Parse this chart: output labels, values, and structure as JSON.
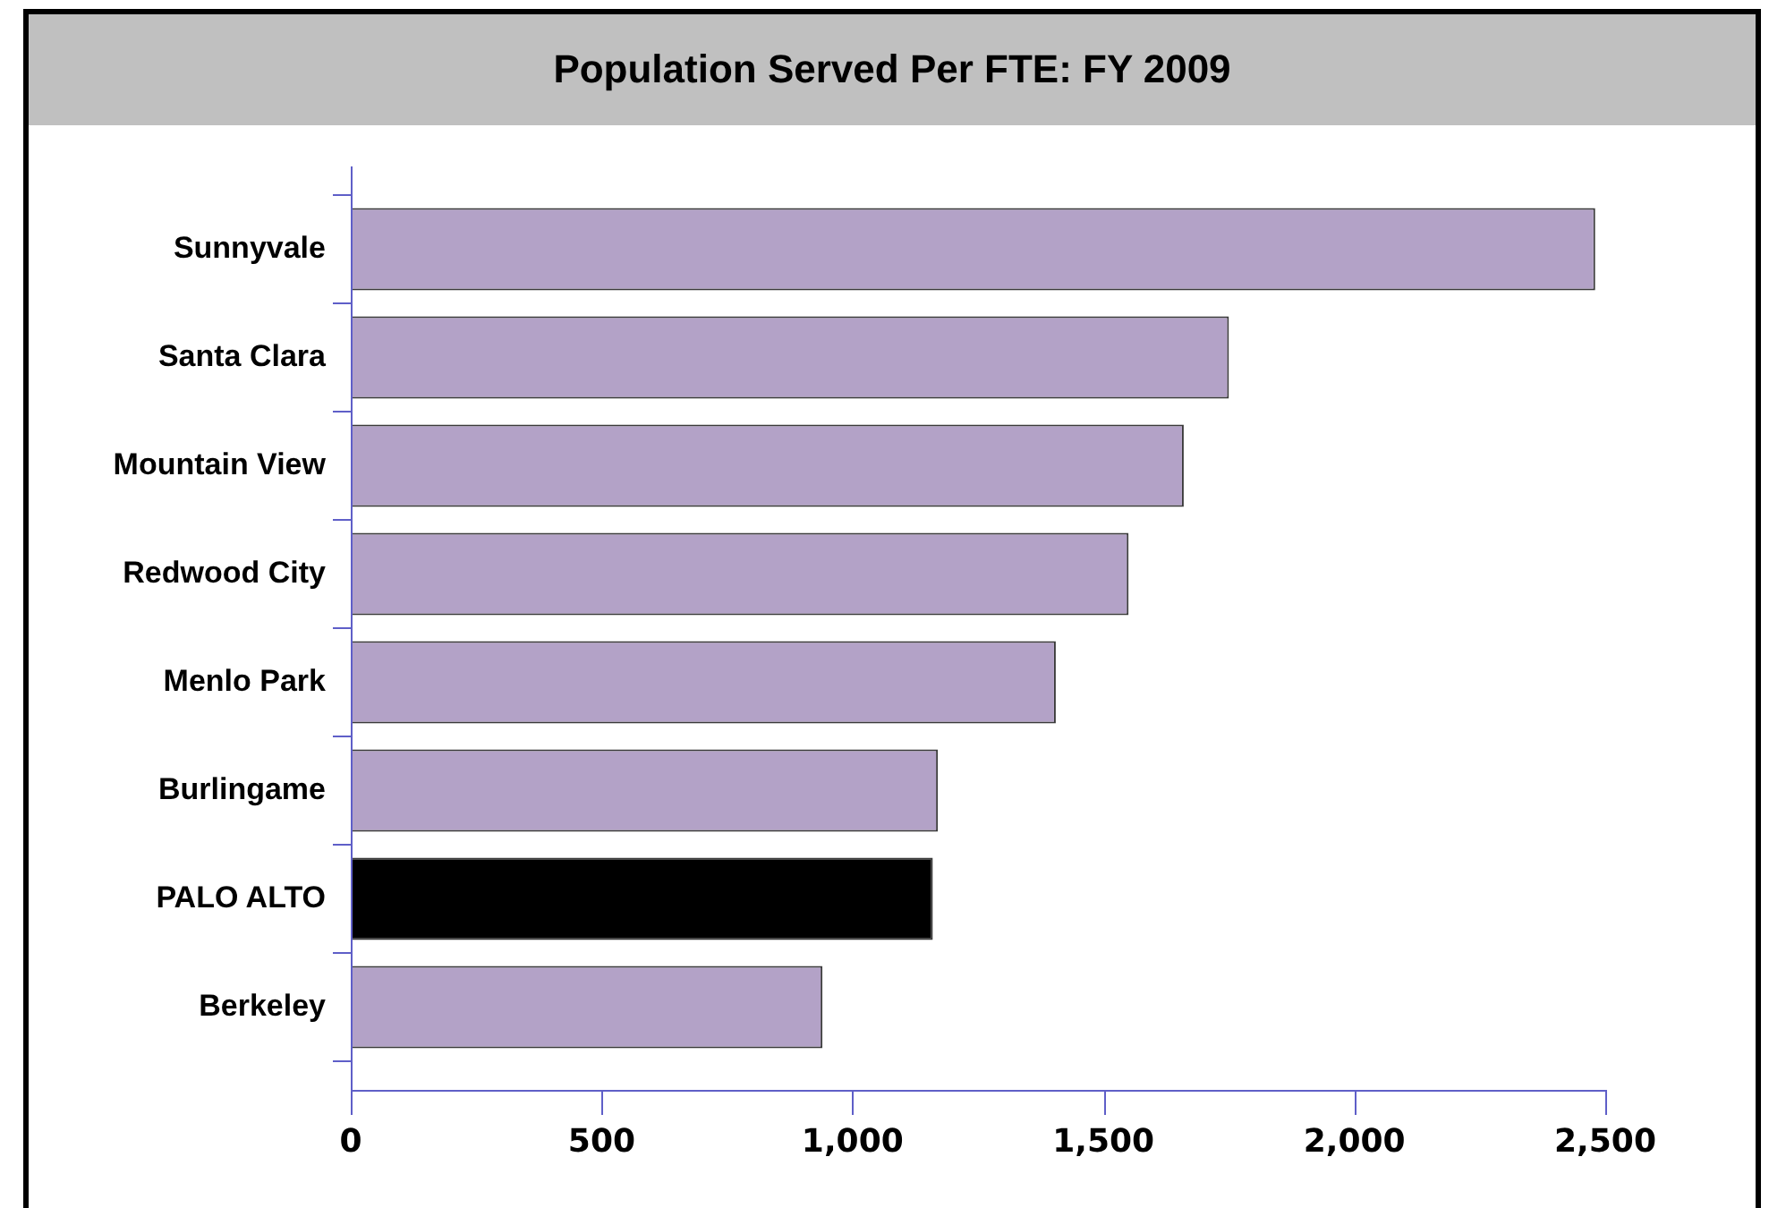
{
  "chart_data": {
    "type": "bar",
    "orientation": "horizontal",
    "title": "Population Served Per FTE: FY 2009",
    "categories": [
      "Sunnyvale",
      "Santa Clara",
      "Mountain View",
      "Redwood City",
      "Menlo Park",
      "Burlingame",
      "PALO ALTO",
      "Berkeley"
    ],
    "values": [
      2480,
      1750,
      1660,
      1550,
      1405,
      1170,
      1160,
      940
    ],
    "colors": [
      "#b3a2c7",
      "#b3a2c7",
      "#b3a2c7",
      "#b3a2c7",
      "#b3a2c7",
      "#b3a2c7",
      "#000000",
      "#b3a2c7"
    ],
    "xlim": [
      0,
      2500
    ],
    "xticks": [
      0,
      500,
      {
        "value": 1000,
        "label": "1,000"
      },
      {
        "value": 1500,
        "label": "1,500"
      },
      {
        "value": 2000,
        "label": "2,000"
      },
      {
        "value": 2500,
        "label": "2,500"
      }
    ]
  }
}
